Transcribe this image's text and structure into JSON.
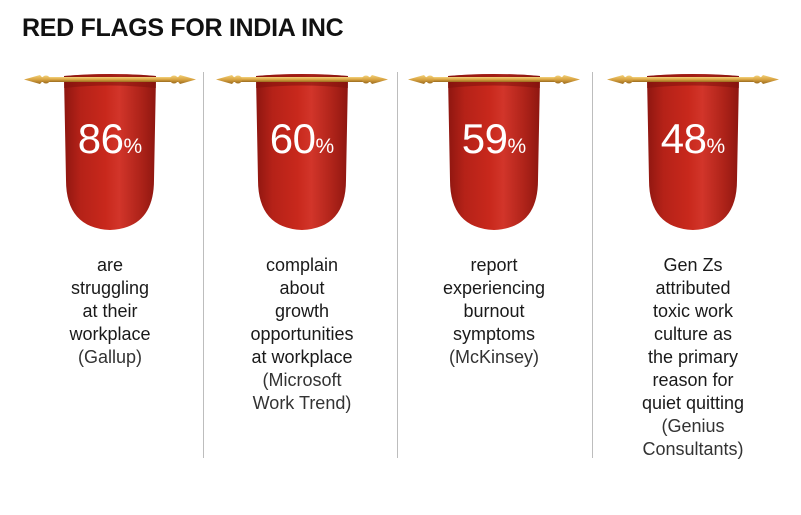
{
  "header": {
    "title": "RED FLAGS FOR INDIA INC"
  },
  "colors": {
    "banner_red": "#c8281c",
    "banner_red_dark": "#8e1610",
    "rod_gold": "#d9a441",
    "divider": "#bdbdbd",
    "text": "#1a1a1a"
  },
  "icons": [
    "pennant-banner-icon",
    "gold-rod-icon"
  ],
  "stats": [
    {
      "value": "86",
      "unit": "%",
      "lines": [
        "are",
        "struggling",
        "at their",
        "workplace"
      ],
      "source": [
        "(Gallup)"
      ]
    },
    {
      "value": "60",
      "unit": "%",
      "lines": [
        "complain",
        "about",
        "growth",
        "opportunities",
        "at workplace"
      ],
      "source": [
        "(Microsoft",
        "Work Trend)"
      ]
    },
    {
      "value": "59",
      "unit": "%",
      "lines": [
        "report",
        "experiencing",
        "burnout",
        "symptoms"
      ],
      "source": [
        "(McKinsey)"
      ]
    },
    {
      "value": "48",
      "unit": "%",
      "lines": [
        "Gen Zs",
        "attributed",
        "toxic work",
        "culture as",
        "the primary",
        "reason for",
        "quiet quitting"
      ],
      "source": [
        "(Genius",
        "Consultants)"
      ]
    }
  ]
}
